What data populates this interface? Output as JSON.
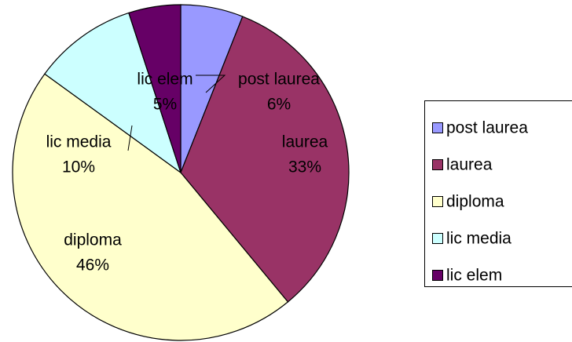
{
  "chart_data": {
    "type": "pie",
    "categories": [
      "post laurea",
      "laurea",
      "diploma",
      "lic media",
      "lic elem"
    ],
    "values": [
      6,
      33,
      46,
      10,
      5
    ],
    "value_labels": [
      "6%",
      "33%",
      "46%",
      "10%",
      "5%"
    ],
    "colors": [
      "#9999ff",
      "#993366",
      "#ffffcc",
      "#ccffff",
      "#660066"
    ],
    "legend": "right"
  }
}
